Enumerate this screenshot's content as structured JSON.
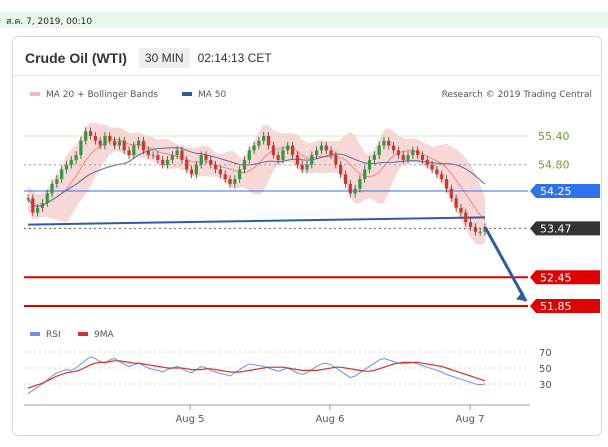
{
  "timestamp": "ส.ค. 7, 2019, 00:10",
  "header": {
    "title": "Crude Oil (WTI)",
    "timeframe": "30 MIN",
    "time": "02:14:13 CET"
  },
  "legend": {
    "ma20_bollinger": "MA 20 + Bollinger Bands",
    "ma50": "MA 50",
    "credit": "Research © 2019 Trading Central"
  },
  "rsi_legend": {
    "rsi": "RSI",
    "ma9": "9MA"
  },
  "colors": {
    "candle_up": "#2e9b3a",
    "candle_down": "#d0342c",
    "ma50": "#5a6b96",
    "bollinger": "#f2b8b4",
    "support_line": "#2f5c9e",
    "resistance_green": "#d6e8b4",
    "level_blue": "#2f72f0",
    "level_red": "#e00000",
    "level_dark": "#333333",
    "rsi_line": "#6f8ff0",
    "rsi_ma": "#d0342c"
  },
  "chart_data": {
    "type": "candlestick",
    "x_ticks": [
      "Aug 5",
      "Aug 6",
      "Aug 7"
    ],
    "y_range": [
      51.6,
      55.9
    ],
    "levels": [
      {
        "value": 55.4,
        "label": "55.40",
        "kind": "resistance"
      },
      {
        "value": 54.8,
        "label": "54.80",
        "kind": "resistance"
      },
      {
        "value": 54.25,
        "label": "54.25",
        "kind": "pivot"
      },
      {
        "value": 53.47,
        "label": "53.47",
        "kind": "last"
      },
      {
        "value": 52.45,
        "label": "52.45",
        "kind": "target"
      },
      {
        "value": 51.85,
        "label": "51.85",
        "kind": "target"
      }
    ],
    "support_trendline": [
      [
        0,
        53.55
      ],
      [
        110,
        53.7
      ]
    ],
    "prices": [
      54.1,
      53.8,
      53.9,
      54.0,
      54.2,
      54.4,
      54.5,
      54.7,
      54.8,
      54.9,
      55.0,
      55.3,
      55.5,
      55.4,
      55.3,
      55.2,
      55.4,
      55.3,
      55.2,
      55.3,
      55.1,
      55.0,
      55.2,
      55.3,
      55.1,
      55.0,
      55.0,
      54.9,
      54.8,
      54.9,
      55.0,
      55.1,
      54.9,
      54.7,
      54.6,
      54.8,
      55.0,
      54.9,
      54.8,
      54.7,
      54.6,
      54.5,
      54.4,
      54.5,
      54.7,
      54.9,
      55.1,
      55.2,
      55.3,
      55.4,
      55.2,
      55.0,
      54.9,
      55.1,
      55.2,
      55.0,
      54.8,
      54.7,
      54.8,
      55.0,
      55.1,
      55.2,
      55.1,
      55.0,
      54.8,
      54.6,
      54.4,
      54.2,
      54.3,
      54.5,
      54.7,
      54.9,
      55.0,
      55.2,
      55.3,
      55.2,
      55.1,
      55.0,
      54.9,
      55.0,
      55.1,
      55.0,
      54.9,
      54.8,
      54.7,
      54.6,
      54.5,
      54.3,
      54.1,
      53.9,
      53.8,
      53.6,
      53.5,
      53.4,
      53.4,
      53.5
    ],
    "rsi": {
      "y_ticks": [
        70,
        50,
        30
      ],
      "y_range": [
        10,
        75
      ],
      "values": [
        18,
        22,
        26,
        30,
        35,
        40,
        44,
        46,
        48,
        47,
        50,
        55,
        60,
        64,
        62,
        58,
        56,
        60,
        62,
        58,
        55,
        52,
        54,
        56,
        53,
        50,
        48,
        47,
        45,
        48,
        50,
        52,
        49,
        46,
        44,
        48,
        52,
        50,
        47,
        45,
        43,
        42,
        40,
        44,
        48,
        52,
        55,
        54,
        53,
        52,
        50,
        48,
        46,
        48,
        50,
        47,
        44,
        42,
        44,
        48,
        52,
        55,
        56,
        54,
        50,
        46,
        42,
        38,
        40,
        44,
        48,
        52,
        56,
        60,
        62,
        60,
        58,
        56,
        55,
        56,
        57,
        55,
        53,
        51,
        49,
        47,
        45,
        42,
        40,
        38,
        36,
        34,
        32,
        30,
        29,
        30
      ],
      "ma_values": [
        25,
        27,
        29,
        31,
        34,
        37,
        40,
        42,
        44,
        45,
        46,
        48,
        51,
        54,
        56,
        57,
        57,
        58,
        59,
        59,
        58,
        57,
        56,
        56,
        55,
        54,
        53,
        52,
        51,
        50,
        50,
        50,
        50,
        49,
        48,
        48,
        48,
        49,
        49,
        48,
        47,
        46,
        45,
        45,
        45,
        46,
        47,
        48,
        49,
        50,
        51,
        51,
        51,
        51,
        50,
        49,
        48,
        47,
        47,
        47,
        47,
        48,
        49,
        50,
        51,
        51,
        50,
        49,
        48,
        47,
        46,
        46,
        47,
        49,
        51,
        53,
        55,
        56,
        57,
        57,
        57,
        57,
        56,
        55,
        54,
        53,
        52,
        50,
        48,
        46,
        44,
        42,
        40,
        38,
        36,
        34
      ]
    }
  }
}
